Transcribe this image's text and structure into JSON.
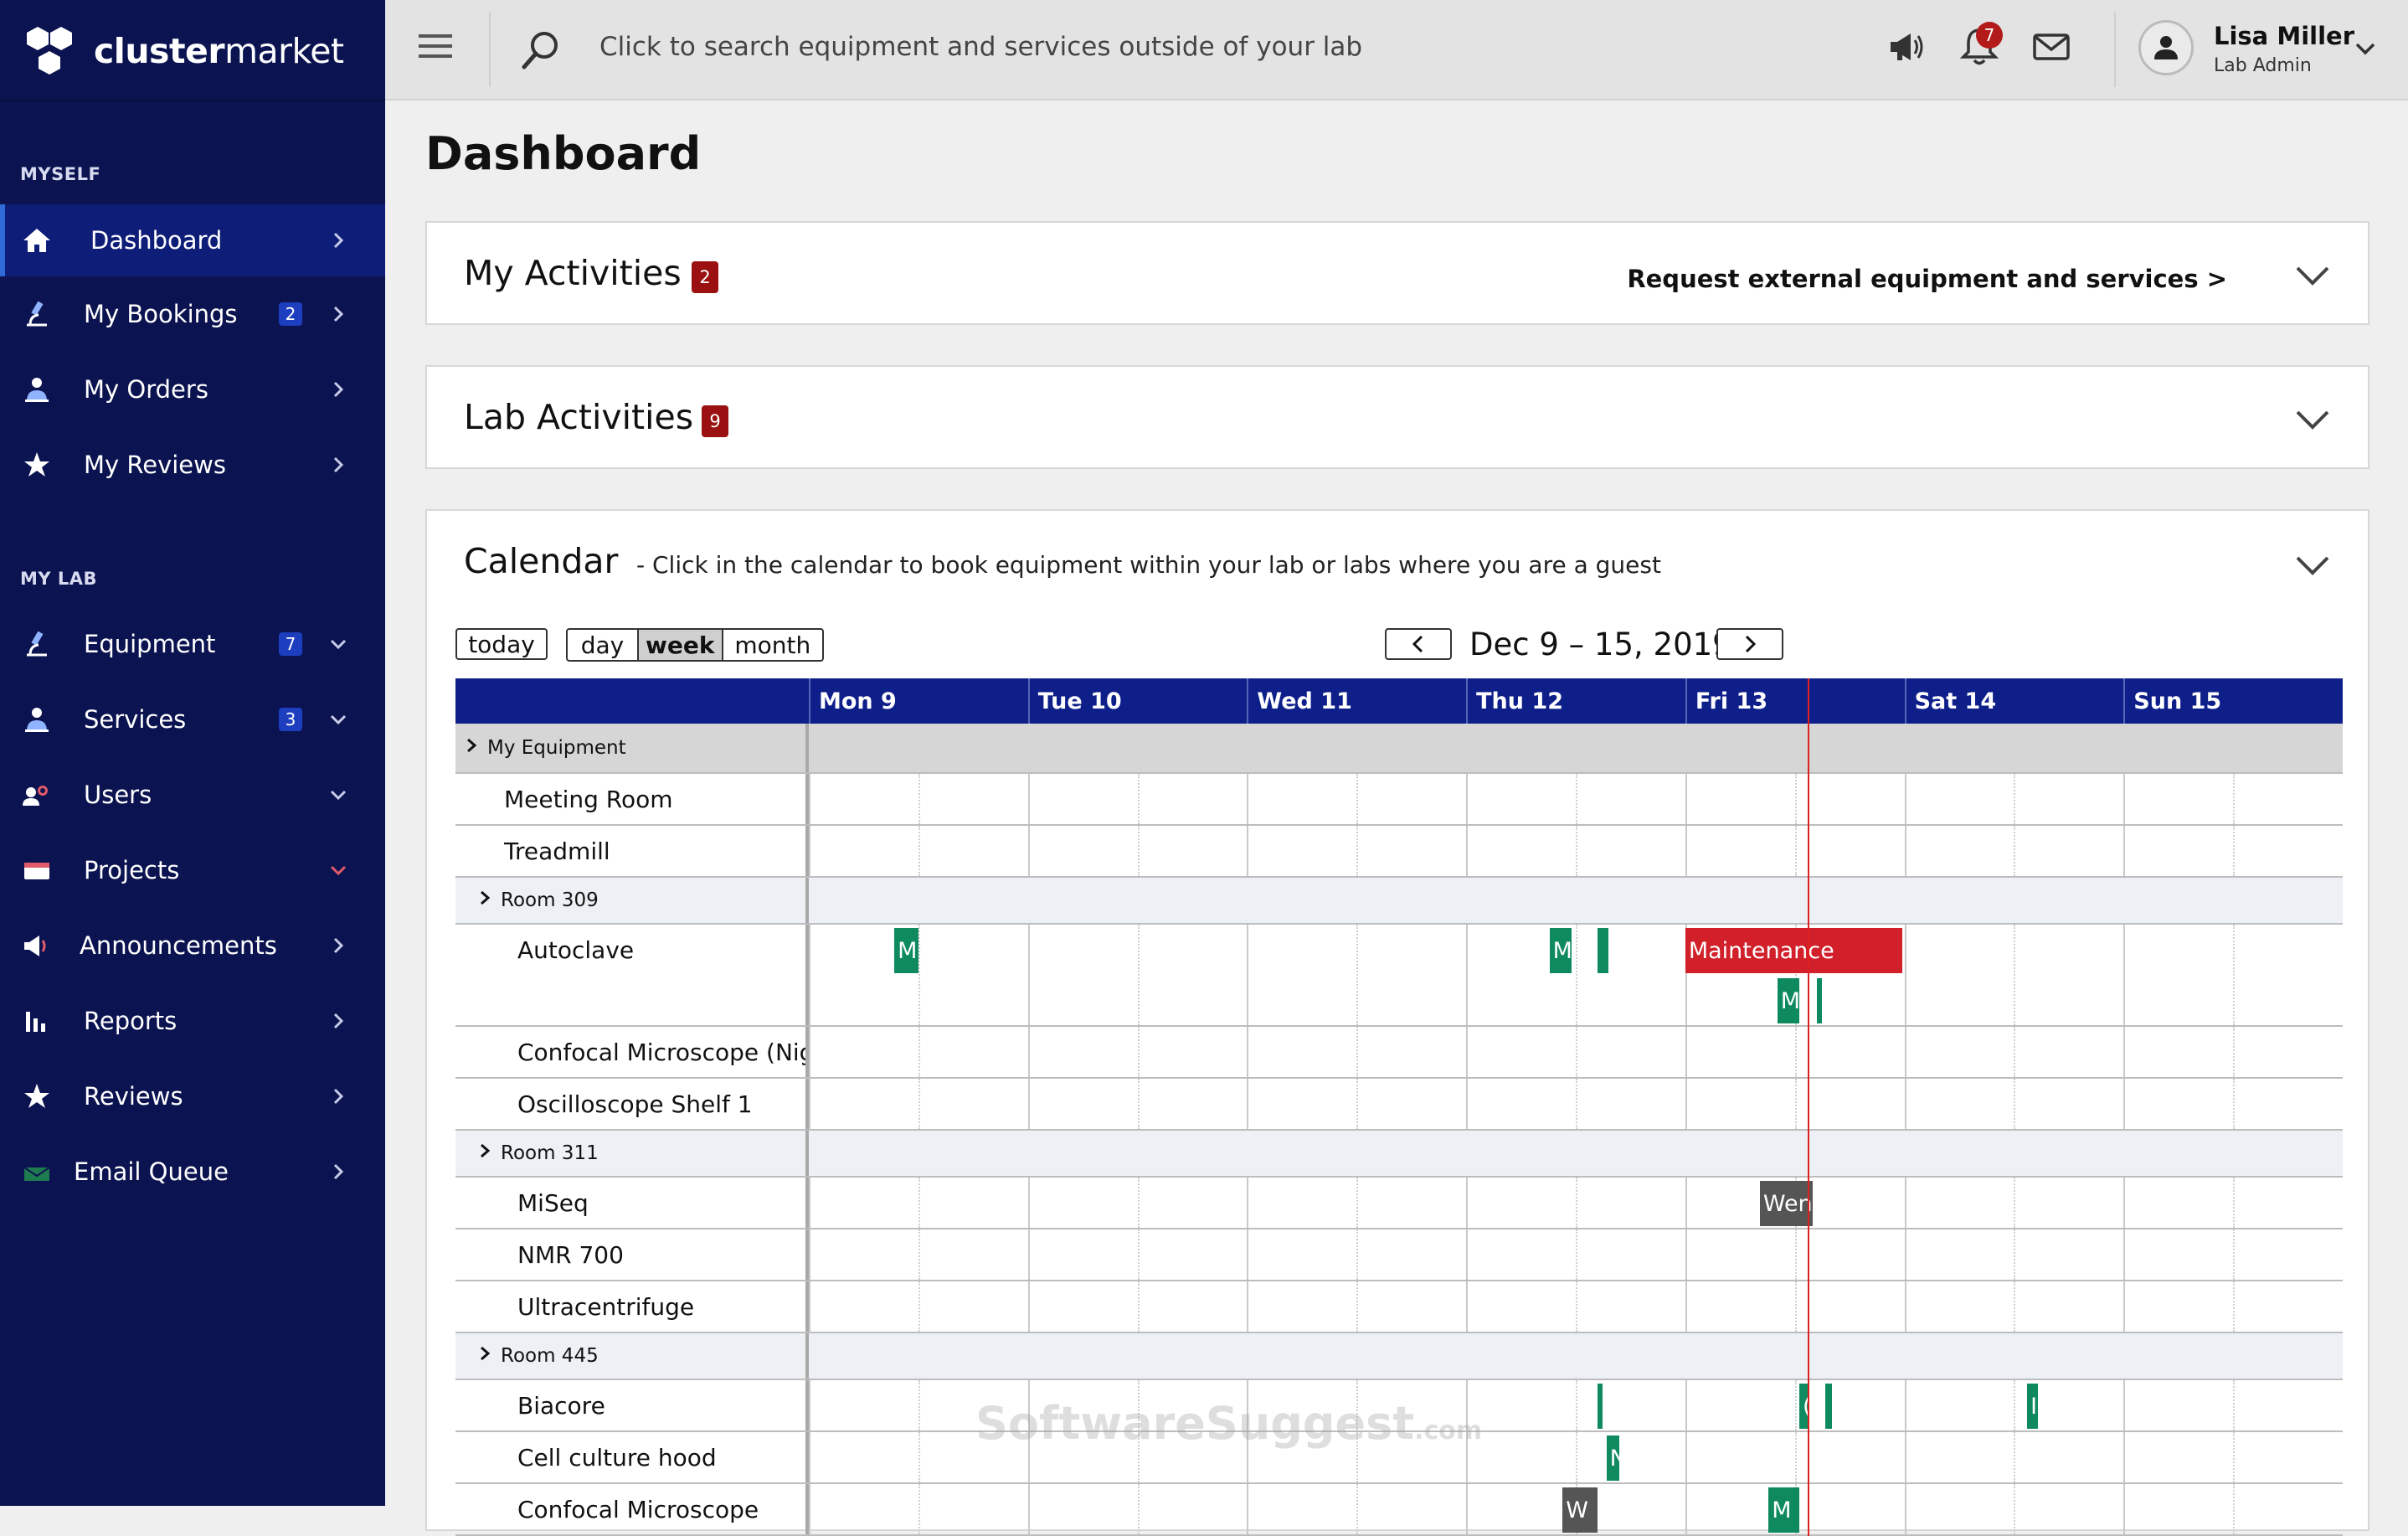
{
  "sidebar": {
    "logo": {
      "bold": "cluster",
      "rest": "market"
    },
    "sections": [
      {
        "label": "MYSELF"
      },
      {
        "label": "MY LAB"
      }
    ],
    "items": [
      {
        "label": "Dashboard",
        "icon": "home-icon",
        "badge": ""
      },
      {
        "label": "My Bookings",
        "icon": "microscope-icon",
        "badge": "2"
      },
      {
        "label": "My Orders",
        "icon": "person-icon",
        "badge": ""
      },
      {
        "label": "My Reviews",
        "icon": "star-icon",
        "badge": ""
      },
      {
        "label": "Equipment",
        "icon": "microscope-icon",
        "badge": "7"
      },
      {
        "label": "Services",
        "icon": "person-icon",
        "badge": "3"
      },
      {
        "label": "Users",
        "icon": "users-icon",
        "badge": ""
      },
      {
        "label": "Projects",
        "icon": "folder-icon",
        "badge": ""
      },
      {
        "label": "Announcements",
        "icon": "megaphone-icon",
        "badge": ""
      },
      {
        "label": "Reports",
        "icon": "bar-chart-icon",
        "badge": ""
      },
      {
        "label": "Reviews",
        "icon": "star-icon",
        "badge": ""
      },
      {
        "label": "Email Queue",
        "icon": "envelope-icon",
        "badge": ""
      }
    ]
  },
  "topbar": {
    "search_placeholder": "Click to search equipment and services outside of your lab",
    "notifications_count": "7",
    "user": {
      "name": "Lisa Miller",
      "role": "Lab Admin"
    }
  },
  "main": {
    "title": "Dashboard",
    "my_activities": {
      "title": "My Activities",
      "badge": "2",
      "link": "Request external equipment and services >"
    },
    "lab_activities": {
      "title": "Lab Activities",
      "badge": "9"
    },
    "calendar": {
      "title": "Calendar",
      "subtitle": "-   Click in the calendar to book equipment within your lab or labs where you are a guest",
      "today_label": "today",
      "views": [
        "day",
        "week",
        "month"
      ],
      "active_view": "week",
      "date_range": "Dec 9 – 15, 2019",
      "days": [
        "Mon 9",
        "Tue 10",
        "Wed 11",
        "Thu 12",
        "Fri 13",
        "Sat 14",
        "Sun 15"
      ],
      "rows": [
        {
          "type": "top-group",
          "label": "My Equipment"
        },
        {
          "type": "item",
          "label": "Meeting Room",
          "indent": 1
        },
        {
          "type": "item",
          "label": "Treadmill",
          "indent": 1
        },
        {
          "type": "group",
          "label": "Room 309"
        },
        {
          "type": "item",
          "label": "Autoclave",
          "indent": 2,
          "tall": true
        },
        {
          "type": "item",
          "label": "Confocal Microscope (Nigh",
          "indent": 2
        },
        {
          "type": "item",
          "label": "Oscilloscope Shelf 1",
          "indent": 2
        },
        {
          "type": "group",
          "label": "Room 311"
        },
        {
          "type": "item",
          "label": "MiSeq",
          "indent": 2
        },
        {
          "type": "item",
          "label": "NMR 700",
          "indent": 2
        },
        {
          "type": "item",
          "label": "Ultracentrifuge",
          "indent": 2
        },
        {
          "type": "group",
          "label": "Room 445"
        },
        {
          "type": "item",
          "label": "Biacore",
          "indent": 2
        },
        {
          "type": "item",
          "label": "Cell culture hood",
          "indent": 2
        },
        {
          "type": "item",
          "label": "Confocal Microscope",
          "indent": 2
        }
      ],
      "events": [
        {
          "row": 4,
          "day": 0,
          "start": 0.39,
          "len": 0.11,
          "label": "M",
          "color": "green",
          "lane": 0
        },
        {
          "row": 4,
          "day": 3,
          "start": 0.38,
          "len": 0.1,
          "label": "M",
          "color": "green",
          "lane": 0
        },
        {
          "row": 4,
          "day": 3,
          "start": 0.6,
          "len": 0.05,
          "label": "",
          "color": "green",
          "lane": 0
        },
        {
          "row": 4,
          "day": 4,
          "start": 0.0,
          "len": 0.99,
          "label": "Maintenance",
          "color": "red",
          "lane": 0
        },
        {
          "row": 4,
          "day": 4,
          "start": 0.42,
          "len": 0.1,
          "label": "M",
          "color": "green",
          "lane": 1
        },
        {
          "row": 4,
          "day": 4,
          "start": 0.6,
          "len": 0.02,
          "label": "",
          "color": "green",
          "lane": 1
        },
        {
          "row": 8,
          "day": 4,
          "start": 0.34,
          "len": 0.24,
          "label": "Wen",
          "color": "gray",
          "lane": 0
        },
        {
          "row": 12,
          "day": 3,
          "start": 0.6,
          "len": 0.02,
          "label": "",
          "color": "green",
          "lane": 0
        },
        {
          "row": 12,
          "day": 4,
          "start": 0.52,
          "len": 0.04,
          "label": "(",
          "color": "green",
          "lane": 0
        },
        {
          "row": 12,
          "day": 4,
          "start": 0.64,
          "len": 0.03,
          "label": "",
          "color": "green",
          "lane": 0
        },
        {
          "row": 12,
          "day": 5,
          "start": 0.56,
          "len": 0.05,
          "label": "I",
          "color": "green",
          "lane": 0
        },
        {
          "row": 13,
          "day": 3,
          "start": 0.64,
          "len": 0.06,
          "label": "N",
          "color": "green",
          "lane": 0
        },
        {
          "row": 14,
          "day": 3,
          "start": 0.44,
          "len": 0.16,
          "label": "W",
          "color": "gray",
          "lane": 0
        },
        {
          "row": 14,
          "day": 4,
          "start": 0.38,
          "len": 0.14,
          "label": "M",
          "color": "green",
          "lane": 0
        }
      ],
      "now": {
        "day": 4,
        "fraction": 0.56
      }
    }
  },
  "watermark": {
    "main": "SoftwareSuggest",
    "tld": ".com"
  }
}
